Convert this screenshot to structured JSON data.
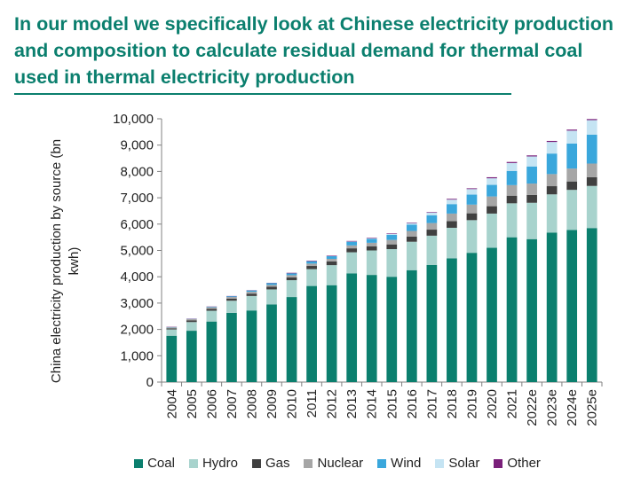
{
  "title": "In our model we specifically look at Chinese electricity production and composition to calculate residual demand for thermal coal used in thermal electricity production",
  "chart_data": {
    "type": "stacked-bar",
    "ylabel": "China electricity production by source (bn kwh)",
    "xlabel": "",
    "ylim": [
      0,
      10000
    ],
    "yticks": [
      0,
      1000,
      2000,
      3000,
      4000,
      5000,
      6000,
      7000,
      8000,
      9000,
      10000
    ],
    "ytick_labels": [
      "0",
      "1,000",
      "2,000",
      "3,000",
      "4,000",
      "5,000",
      "6,000",
      "7,000",
      "8,000",
      "9,000",
      "10,000"
    ],
    "categories": [
      "2004",
      "2005",
      "2006",
      "2007",
      "2008",
      "2009",
      "2010",
      "2011",
      "2012",
      "2013",
      "2014",
      "2015",
      "2016",
      "2017",
      "2018",
      "2019",
      "2020",
      "2021",
      "2022e",
      "2023e",
      "2024e",
      "2025e"
    ],
    "legend_position": "bottom",
    "series": [
      {
        "name": "Coal",
        "color": "#0b7f6e",
        "values": [
          1760,
          1950,
          2300,
          2630,
          2720,
          2950,
          3230,
          3650,
          3680,
          4130,
          4070,
          4000,
          4250,
          4450,
          4700,
          4910,
          5100,
          5500,
          5430,
          5680,
          5780,
          5850
        ]
      },
      {
        "name": "Hydro",
        "color": "#a8d3cd",
        "values": [
          240,
          330,
          410,
          460,
          550,
          570,
          640,
          640,
          760,
          800,
          930,
          1050,
          1080,
          1110,
          1160,
          1240,
          1300,
          1290,
          1380,
          1450,
          1520,
          1600
        ]
      },
      {
        "name": "Gas",
        "color": "#404040",
        "values": [
          40,
          60,
          70,
          80,
          90,
          100,
          110,
          120,
          140,
          150,
          160,
          180,
          200,
          230,
          250,
          260,
          280,
          290,
          300,
          310,
          320,
          330
        ]
      },
      {
        "name": "Nuclear",
        "color": "#a6a6a6",
        "values": [
          40,
          50,
          60,
          60,
          70,
          70,
          80,
          90,
          100,
          110,
          130,
          170,
          210,
          250,
          290,
          330,
          370,
          400,
          430,
          460,
          490,
          520
        ]
      },
      {
        "name": "Wind",
        "color": "#3aa7dc",
        "values": [
          10,
          10,
          20,
          30,
          50,
          70,
          70,
          90,
          100,
          140,
          150,
          190,
          240,
          290,
          360,
          380,
          440,
          540,
          650,
          780,
          950,
          1100
        ]
      },
      {
        "name": "Solar",
        "color": "#c5e4f3",
        "values": [
          0,
          0,
          0,
          0,
          0,
          0,
          0,
          0,
          0,
          10,
          20,
          40,
          60,
          110,
          170,
          210,
          250,
          300,
          380,
          440,
          490,
          550
        ]
      },
      {
        "name": "Other",
        "color": "#7a1f7a",
        "values": [
          10,
          10,
          10,
          10,
          10,
          10,
          20,
          20,
          20,
          20,
          20,
          20,
          20,
          20,
          30,
          30,
          40,
          40,
          40,
          40,
          40,
          40
        ]
      }
    ]
  }
}
